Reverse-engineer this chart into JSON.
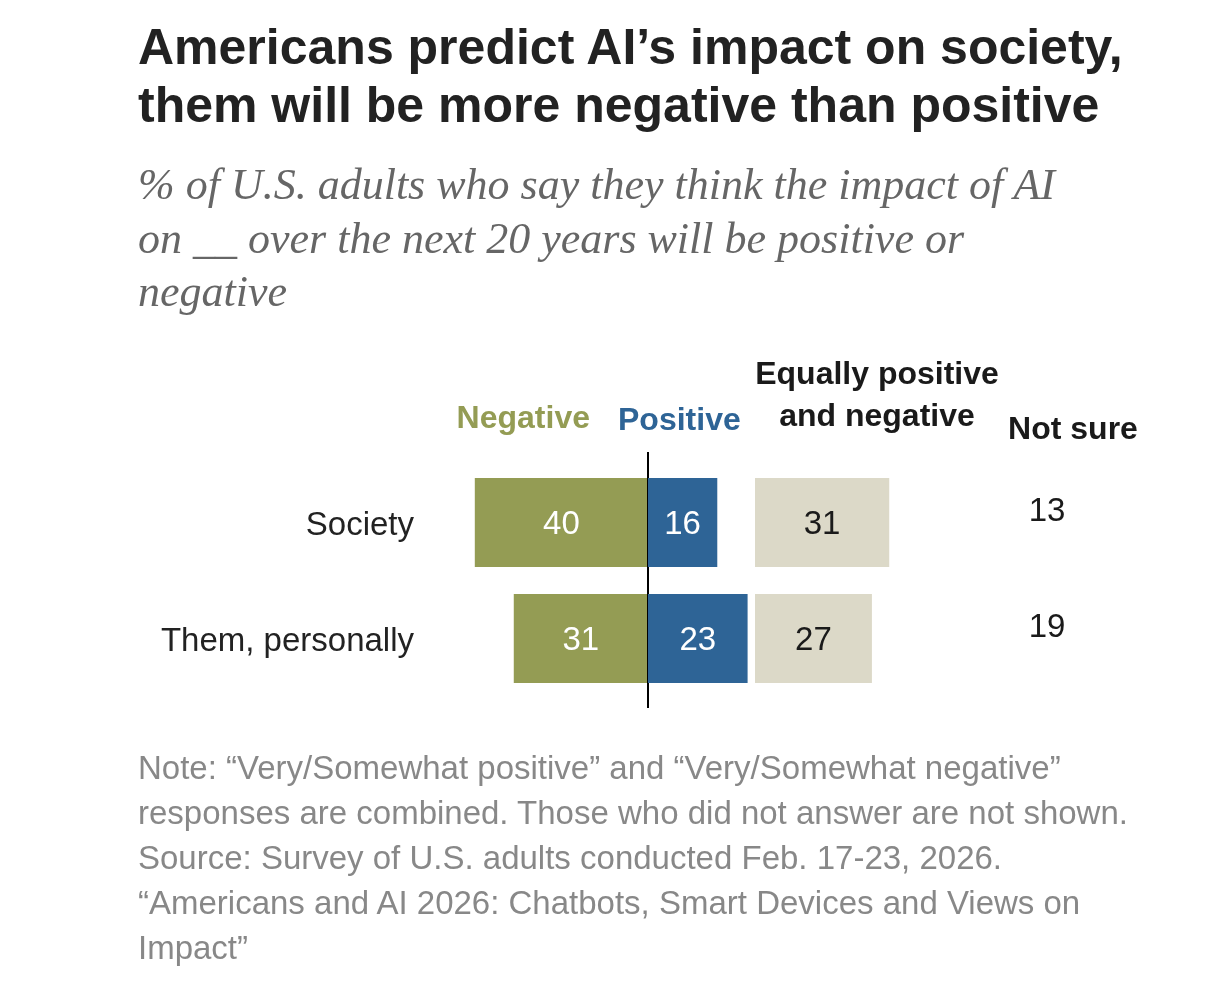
{
  "chart_data": [
    {
      "type": "bar",
      "title": "Americans predict AI’s impact on society, them will be more negative than positive",
      "subtitle": "% of U.S. adults who say they think the impact of AI on __ over the next 20 years will be positive or negative",
      "orientation": "horizontal",
      "categories": [
        "Society",
        "Them, personally"
      ],
      "series": [
        {
          "name": "Negative",
          "color": "#949c54",
          "values": [
            40,
            31
          ]
        }
      ],
      "data_labels": true,
      "tick_labels": "y",
      "annotations": [
        "Note: “Very/Somewhat positive” and “Very/Somewhat negative” responses are combined. Those who did not answer are not shown.",
        "Source: Survey of U.S. adults conducted Feb. 17-23, 2026.",
        "“Americans and AI 2026: Chatbots, Smart Devices and Views on Impact”"
      ]
    },
    {
      "type": "bar",
      "orientation": "horizontal",
      "categories": [
        null,
        null
      ],
      "series": [
        {
          "name": "Positive",
          "color": "#2e6496",
          "values": [
            16,
            23
          ]
        }
      ],
      "data_labels": true
    },
    {
      "type": "bar",
      "orientation": "horizontal",
      "categories": [
        null,
        null
      ],
      "series": [
        {
          "name": "Equally positive and negative",
          "color": "#dcd9c8",
          "values": [
            31,
            27
          ]
        }
      ],
      "data_labels": true
    },
    {
      "type": "other",
      "categories": [
        null,
        null
      ],
      "series": [
        {
          "name": "Not sure",
          "values": [
            13,
            19
          ]
        }
      ],
      "data_labels": true
    }
  ]
}
